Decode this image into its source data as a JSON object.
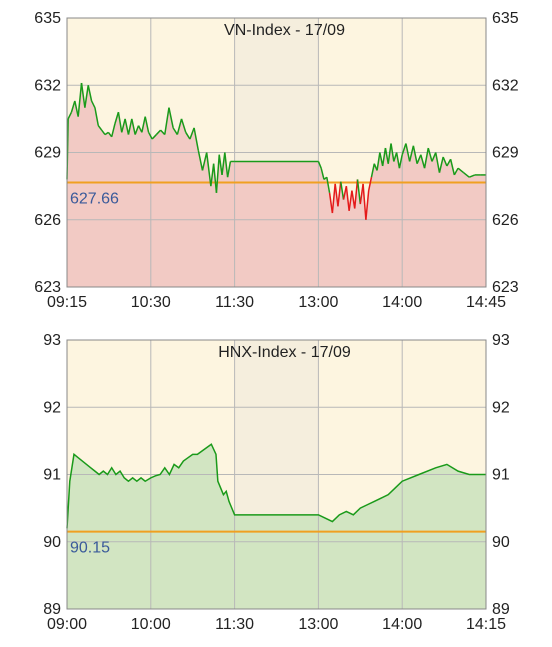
{
  "chart_data": [
    {
      "type": "area",
      "title": "VN-Index - 17/09",
      "ylim": [
        623,
        635
      ],
      "yticks": [
        "635",
        "632",
        "629",
        "626",
        "623"
      ],
      "xticks": [
        "09:15",
        "10:30",
        "11:30",
        "13:00",
        "14:00",
        "14:45"
      ],
      "reference": {
        "value": 627.66,
        "label": "627.66"
      },
      "lunch_break": [
        "11:30",
        "13:00"
      ],
      "colors": {
        "background": "#fdf5e0",
        "break": "#f8f0e0",
        "fill_below": "#f2cac4",
        "fill_above": "#ffffff",
        "line_up": "#1a9a1a",
        "line_down": "#e41a1a",
        "reference": "#f0a020",
        "grid": "#b8b8b8"
      },
      "series": [
        {
          "x": [
            "09:15",
            "09:16",
            "09:19",
            "09:22",
            "09:25",
            "09:28",
            "09:31",
            "09:34",
            "09:37",
            "09:40",
            "09:43",
            "09:46",
            "09:49",
            "09:52",
            "09:55",
            "09:58",
            "10:01",
            "10:04",
            "10:07",
            "10:10",
            "10:13",
            "10:16",
            "10:19",
            "10:22",
            "10:25",
            "10:28",
            "10:31",
            "10:34",
            "10:37",
            "10:40",
            "10:43",
            "10:46",
            "10:49",
            "10:52",
            "10:55",
            "10:58",
            "11:01",
            "11:04",
            "11:07",
            "11:10",
            "11:13",
            "11:15",
            "11:17",
            "11:19",
            "11:21",
            "11:23",
            "11:25",
            "11:27",
            "11:30",
            "13:00",
            "13:02",
            "13:04",
            "13:06",
            "13:08",
            "13:10",
            "13:12",
            "13:14",
            "13:16",
            "13:18",
            "13:20",
            "13:22",
            "13:24",
            "13:26",
            "13:28",
            "13:30",
            "13:32",
            "13:34",
            "13:36",
            "13:38",
            "13:40",
            "13:42",
            "13:44",
            "13:46",
            "13:48",
            "13:50",
            "13:52",
            "13:54",
            "13:56",
            "13:58",
            "14:00",
            "14:02",
            "14:04",
            "14:06",
            "14:08",
            "14:10",
            "14:12",
            "14:14",
            "14:16",
            "14:18",
            "14:20",
            "14:22",
            "14:24",
            "14:26",
            "14:28",
            "14:30",
            "14:33",
            "14:36",
            "14:39",
            "14:42",
            "14:45"
          ],
          "y": [
            627.8,
            630.5,
            630.8,
            631.3,
            630.6,
            632.1,
            631.0,
            632.0,
            631.3,
            631.0,
            630.2,
            630.0,
            629.8,
            629.9,
            629.7,
            630.3,
            630.8,
            629.9,
            630.5,
            629.8,
            630.5,
            629.8,
            630.2,
            629.9,
            630.6,
            629.9,
            629.6,
            629.8,
            630.0,
            629.8,
            631.0,
            630.1,
            629.8,
            630.5,
            629.9,
            629.6,
            630.1,
            629.1,
            628.2,
            629.0,
            627.5,
            628.5,
            627.2,
            628.9,
            628.0,
            629.0,
            627.9,
            628.6,
            628.6,
            628.6,
            628.3,
            627.8,
            627.9,
            627.2,
            626.3,
            627.6,
            626.6,
            627.7,
            626.9,
            627.5,
            626.4,
            627.3,
            626.5,
            627.8,
            626.7,
            627.6,
            626.0,
            627.3,
            627.9,
            628.5,
            628.2,
            629.0,
            628.4,
            629.2,
            628.5,
            629.4,
            628.6,
            629.0,
            628.3,
            628.9,
            629.4,
            628.6,
            629.3,
            628.5,
            628.9,
            628.3,
            629.2,
            628.6,
            629.0,
            628.1,
            628.8,
            628.4,
            628.7,
            628.0,
            628.3,
            628.1,
            627.9,
            628.0,
            628.0,
            628.0
          ]
        }
      ]
    },
    {
      "type": "area",
      "title": "HNX-Index - 17/09",
      "ylim": [
        89,
        93
      ],
      "yticks": [
        "93",
        "92",
        "91",
        "90",
        "89"
      ],
      "xticks": [
        "09:00",
        "10:00",
        "11:30",
        "13:00",
        "14:00",
        "14:15"
      ],
      "reference": {
        "value": 90.15,
        "label": "90.15"
      },
      "lunch_break": [
        "11:30",
        "13:00"
      ],
      "colors": {
        "background": "#fdf5e0",
        "break": "#f8f0e0",
        "fill": "#d2e5c2",
        "line": "#1a9a1a",
        "reference": "#f0a020",
        "grid": "#b8b8b8"
      },
      "series": [
        {
          "x": [
            "09:00",
            "09:02",
            "09:05",
            "09:08",
            "09:11",
            "09:14",
            "09:17",
            "09:20",
            "09:23",
            "09:26",
            "09:29",
            "09:32",
            "09:35",
            "09:38",
            "09:41",
            "09:44",
            "09:47",
            "09:50",
            "09:53",
            "09:56",
            "10:00",
            "10:05",
            "10:10",
            "10:15",
            "10:20",
            "10:25",
            "10:30",
            "10:35",
            "10:40",
            "10:45",
            "10:50",
            "10:55",
            "11:00",
            "11:05",
            "11:10",
            "11:12",
            "11:15",
            "11:18",
            "11:21",
            "11:24",
            "11:27",
            "11:30",
            "13:00",
            "13:05",
            "13:10",
            "13:15",
            "13:20",
            "13:25",
            "13:30",
            "13:35",
            "13:40",
            "13:45",
            "13:50",
            "13:55",
            "14:00",
            "14:03",
            "14:06",
            "14:08",
            "14:10",
            "14:12",
            "14:15"
          ],
          "y": [
            90.2,
            90.9,
            91.3,
            91.25,
            91.2,
            91.15,
            91.1,
            91.05,
            91.0,
            91.05,
            91.0,
            91.1,
            91.0,
            91.05,
            90.95,
            90.9,
            90.95,
            90.9,
            90.95,
            90.9,
            90.95,
            90.98,
            91.0,
            91.1,
            91.0,
            91.15,
            91.1,
            91.2,
            91.25,
            91.3,
            91.3,
            91.35,
            91.4,
            91.45,
            91.3,
            90.9,
            90.8,
            90.7,
            90.75,
            90.6,
            90.5,
            90.4,
            90.4,
            90.35,
            90.3,
            90.4,
            90.45,
            90.4,
            90.5,
            90.55,
            90.6,
            90.65,
            90.7,
            90.8,
            90.9,
            91.0,
            91.1,
            91.15,
            91.05,
            91.0,
            91.0
          ]
        }
      ]
    }
  ]
}
